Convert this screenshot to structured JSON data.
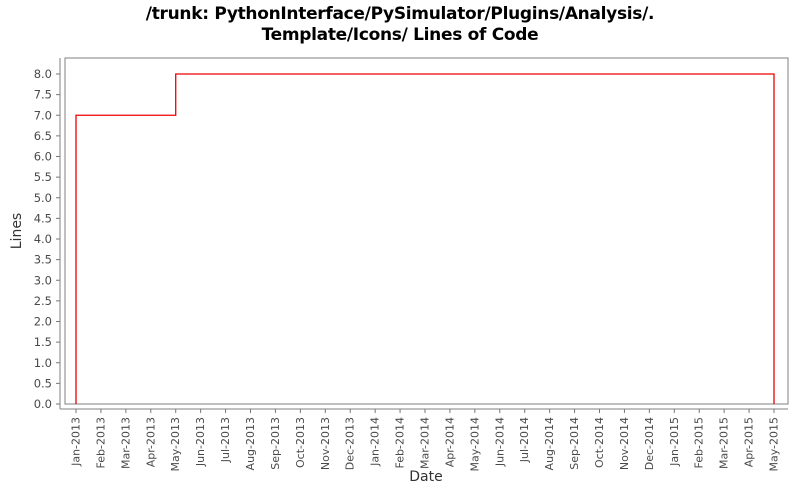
{
  "title": {
    "line1": "/trunk: PythonInterface/PySimulator/Plugins/Analysis/.",
    "line2": "Template/Icons/ Lines of Code"
  },
  "chart_data": {
    "type": "line",
    "subtype": "step",
    "title": "/trunk: PythonInterface/PySimulator/Plugins/Analysis/. Template/Icons/ Lines of Code",
    "xlabel": "Date",
    "ylabel": "Lines",
    "grid": false,
    "legend": false,
    "ylim": [
      0,
      8.4
    ],
    "y_tick_labels": [
      "0.0",
      "0.5",
      "1.0",
      "1.5",
      "2.0",
      "2.5",
      "3.0",
      "3.5",
      "4.0",
      "4.5",
      "5.0",
      "5.5",
      "6.0",
      "6.5",
      "7.0",
      "7.5",
      "8.0"
    ],
    "x_tick_labels": [
      "Jan-2013",
      "Feb-2013",
      "Mar-2013",
      "Apr-2013",
      "May-2013",
      "Jun-2013",
      "Jul-2013",
      "Aug-2013",
      "Sep-2013",
      "Oct-2013",
      "Nov-2013",
      "Dec-2013",
      "Jan-2014",
      "Feb-2014",
      "Mar-2014",
      "Apr-2014",
      "May-2014",
      "Jun-2014",
      "Jul-2014",
      "Aug-2014",
      "Sep-2014",
      "Oct-2014",
      "Nov-2014",
      "Dec-2014",
      "Jan-2015",
      "Feb-2015",
      "Mar-2015",
      "Apr-2015",
      "May-2015"
    ],
    "series": [
      {
        "name": "Lines of Code",
        "color": "#ee0000",
        "starts_at_zero": true,
        "step_points": [
          {
            "x": "Jan-2013",
            "y": 7
          },
          {
            "x": "May-2013",
            "y": 8
          },
          {
            "x": "May-2015",
            "y": 0
          }
        ]
      }
    ],
    "colors": {
      "frame": "#808080",
      "axis_line": "#808080",
      "tick_mark": "#777777",
      "tick_label": "#4a4a4a",
      "background": "#ffffff"
    }
  }
}
